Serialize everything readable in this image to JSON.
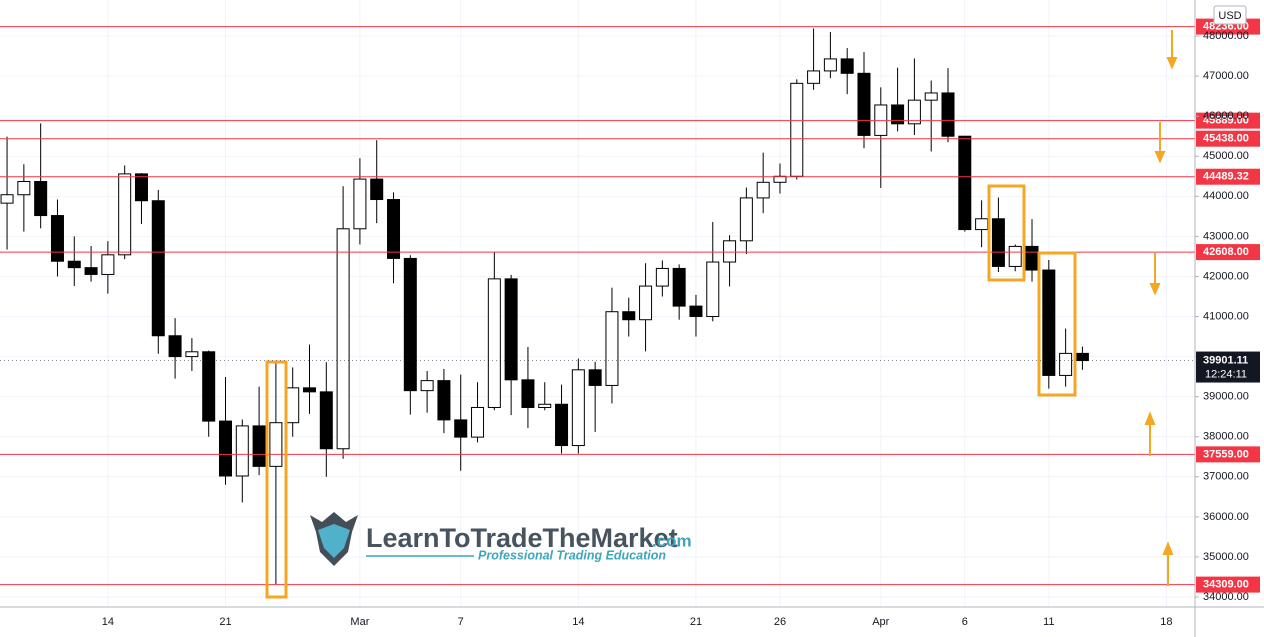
{
  "chart_data": {
    "type": "candlestick",
    "currency": "USD",
    "categories": [
      null,
      null,
      null,
      null,
      null,
      null,
      "14",
      null,
      null,
      null,
      null,
      null,
      null,
      "21",
      null,
      null,
      null,
      null,
      null,
      null,
      null,
      "Mar",
      null,
      null,
      null,
      null,
      null,
      "7",
      null,
      null,
      null,
      null,
      null,
      null,
      "14",
      null,
      null,
      null,
      null,
      null,
      null,
      "21",
      null,
      null,
      null,
      null,
      "26",
      null,
      null,
      null,
      null,
      null,
      "Apr",
      null,
      null,
      null,
      null,
      "6",
      null,
      null,
      null,
      null,
      "11",
      null,
      null,
      null,
      null,
      null,
      null,
      "18"
    ],
    "open": [
      43830,
      44040,
      44370,
      43520,
      42380,
      42220,
      42050,
      42540,
      44560,
      43890,
      40520,
      40000,
      40120,
      38390,
      37020,
      38270,
      37260,
      38350,
      39220,
      39120,
      37700,
      43190,
      44430,
      43920,
      42450,
      39150,
      39400,
      38420,
      37990,
      38730,
      41940,
      39420,
      38730,
      38810,
      37780,
      39670,
      39280,
      41120,
      40920,
      41760,
      42200,
      41260,
      41000,
      42360,
      42890,
      43960,
      44350,
      44500,
      46820,
      47130,
      47430,
      47070,
      45520,
      46280,
      45810,
      46400,
      46580,
      45500,
      43170,
      43440,
      42250,
      42750,
      42160,
      39530,
      40080,
      null,
      null,
      null,
      null,
      null
    ],
    "high": [
      45490,
      44800,
      45820,
      43920,
      43000,
      42760,
      42880,
      44770,
      44580,
      44160,
      40960,
      40460,
      40150,
      39490,
      38430,
      39250,
      39850,
      39730,
      40300,
      39860,
      44250,
      44950,
      45400,
      44100,
      42530,
      39640,
      39690,
      39550,
      39360,
      42600,
      42040,
      40240,
      39360,
      39300,
      39950,
      39870,
      41720,
      41470,
      42330,
      42400,
      42300,
      41540,
      43360,
      43030,
      44220,
      45090,
      44820,
      46920,
      48190,
      48100,
      47700,
      47600,
      46720,
      47210,
      47440,
      46890,
      47200,
      45500,
      43900,
      43970,
      42800,
      43430,
      42410,
      40700,
      40250,
      null,
      null,
      null,
      null,
      null
    ],
    "low": [
      42670,
      43120,
      43200,
      42000,
      41760,
      41870,
      41570,
      42430,
      43310,
      40070,
      39450,
      39640,
      38000,
      36800,
      36360,
      37040,
      34320,
      38000,
      38570,
      37000,
      37450,
      42800,
      43330,
      41830,
      38550,
      38600,
      38090,
      37150,
      37860,
      38660,
      38540,
      38220,
      38660,
      37580,
      37580,
      38120,
      38830,
      40500,
      40130,
      41500,
      40920,
      40500,
      40880,
      41750,
      42560,
      43580,
      44070,
      44420,
      46660,
      46950,
      46550,
      45200,
      44210,
      45620,
      45530,
      45120,
      45350,
      43120,
      42730,
      42110,
      42130,
      41870,
      39200,
      39250,
      39670,
      null,
      null,
      null,
      null,
      null
    ],
    "close": [
      44040,
      44370,
      43520,
      42380,
      42220,
      42050,
      42540,
      44560,
      43890,
      40520,
      40000,
      40120,
      38390,
      37020,
      38270,
      37260,
      38350,
      39220,
      39120,
      37700,
      43190,
      44430,
      43920,
      42450,
      39150,
      39400,
      38420,
      37990,
      38730,
      41940,
      39420,
      38730,
      38810,
      37780,
      39670,
      39280,
      41120,
      40920,
      41760,
      42200,
      41260,
      41000,
      42360,
      42890,
      43960,
      44350,
      44500,
      46820,
      47130,
      47430,
      47070,
      45520,
      46280,
      45810,
      46400,
      46580,
      45500,
      43170,
      43440,
      42250,
      42750,
      42160,
      39530,
      40080,
      39901.11,
      null,
      null,
      null,
      null,
      null
    ],
    "up_color": "#ffffff",
    "down_color": "#000000",
    "level_color": "#f23645",
    "xlim": [
      -0.42,
      70.7
    ],
    "ylim": [
      33750,
      48900
    ],
    "yticks": [
      {
        "value": 34000,
        "label": "34000.00"
      },
      {
        "value": 35000,
        "label": "35000.00"
      },
      {
        "value": 36000,
        "label": "36000.00"
      },
      {
        "value": 37000,
        "label": "37000.00"
      },
      {
        "value": 38000,
        "label": "38000.00"
      },
      {
        "value": 39000,
        "label": "39000.00"
      },
      {
        "value": 40000,
        "label": "40000.00"
      },
      {
        "value": 41000,
        "label": "41000.00"
      },
      {
        "value": 42000,
        "label": "42000.00"
      },
      {
        "value": 43000,
        "label": "43000.00"
      },
      {
        "value": 44000,
        "label": "44000.00"
      },
      {
        "value": 45000,
        "label": "45000.00"
      },
      {
        "value": 46000,
        "label": "46000.00"
      },
      {
        "value": 47000,
        "label": "47000.00"
      },
      {
        "value": 48000,
        "label": "48000.00"
      }
    ],
    "levels": [
      {
        "value": 48236,
        "label": "48236.00"
      },
      {
        "value": 45889,
        "label": "45889.00"
      },
      {
        "value": 45438,
        "label": "45438.00"
      },
      {
        "value": 44489.32,
        "label": "44489.32"
      },
      {
        "value": 42608,
        "label": "42608.00"
      },
      {
        "value": 37559,
        "label": "37559.00"
      },
      {
        "value": 34309,
        "label": "34309.00"
      }
    ],
    "last_price": 39901.11,
    "countdown": "12:24:11"
  },
  "watermark": {
    "brand": "LearnToTradeTheMarket",
    "domain": ".com",
    "tagline": "Professional Trading Education"
  }
}
